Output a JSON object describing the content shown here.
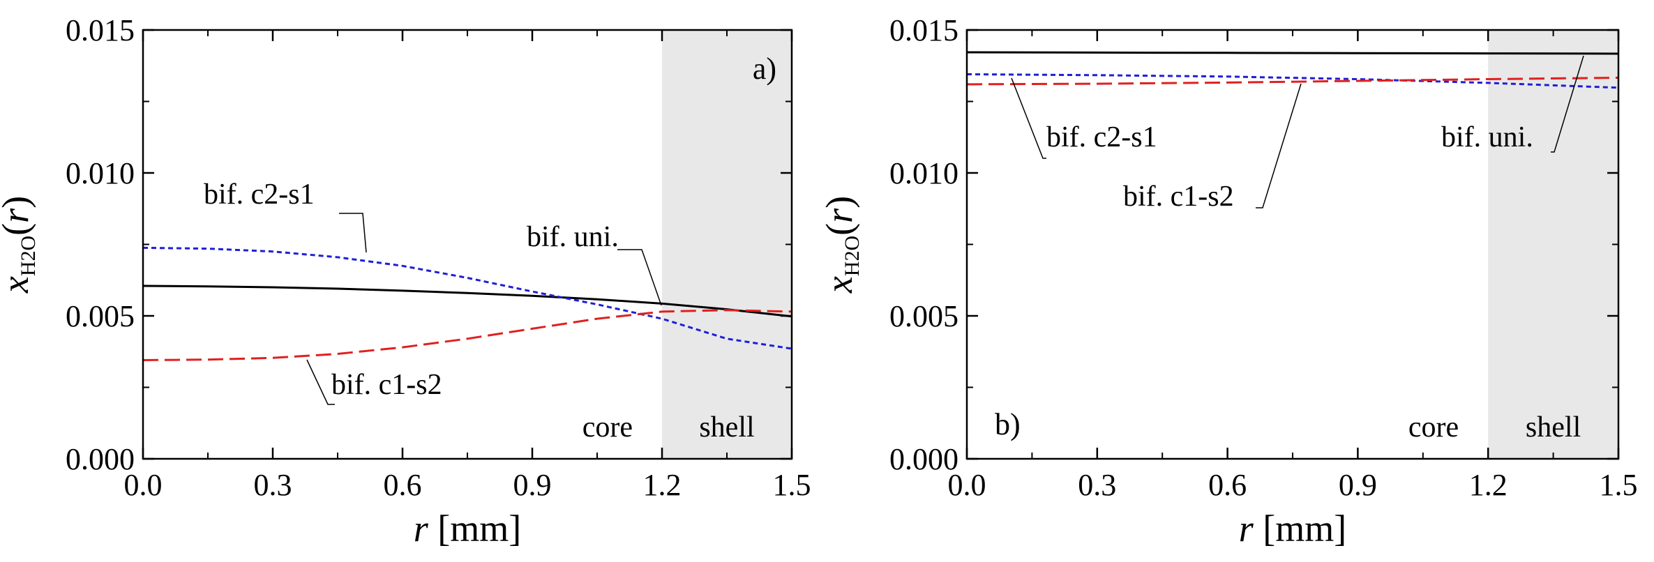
{
  "chart_data": [
    {
      "type": "line",
      "panel_label": "a)",
      "xlabel": {
        "var": "r",
        "unit": "[mm]"
      },
      "ylabel": {
        "var": "x",
        "sub": "H2O",
        "arg_open": "(",
        "arg": "r",
        "arg_close": ")"
      },
      "xlim": [
        0.0,
        1.5
      ],
      "ylim": [
        0.0,
        0.015
      ],
      "xticks": [
        "0.0",
        "0.3",
        "0.6",
        "0.9",
        "1.2",
        "1.5"
      ],
      "yticks": [
        "0.000",
        "0.005",
        "0.010",
        "0.015"
      ],
      "shell_start": 1.2,
      "region_labels": {
        "core": "core",
        "shell": "shell"
      },
      "series": [
        {
          "name": "bif. uni.",
          "color": "#000000",
          "style": "solid",
          "x": [
            0,
            0.15,
            0.3,
            0.45,
            0.6,
            0.75,
            0.9,
            1.05,
            1.2,
            1.35,
            1.5
          ],
          "y": [
            0.00605,
            0.00603,
            0.006,
            0.00595,
            0.00588,
            0.0058,
            0.0057,
            0.00558,
            0.00543,
            0.00523,
            0.00498
          ]
        },
        {
          "name": "bif. c2-s1",
          "color": "#1f1fd6",
          "style": "dotted",
          "x": [
            0,
            0.15,
            0.3,
            0.45,
            0.6,
            0.75,
            0.9,
            1.05,
            1.2,
            1.35,
            1.5
          ],
          "y": [
            0.00738,
            0.00735,
            0.00725,
            0.00705,
            0.00675,
            0.00633,
            0.00585,
            0.0054,
            0.0049,
            0.0042,
            0.00385
          ]
        },
        {
          "name": "bif. c1-s2",
          "color": "#e02020",
          "style": "dashed",
          "x": [
            0,
            0.15,
            0.3,
            0.45,
            0.6,
            0.75,
            0.9,
            1.05,
            1.2,
            1.35,
            1.5
          ],
          "y": [
            0.00345,
            0.00347,
            0.00353,
            0.00367,
            0.0039,
            0.0042,
            0.00455,
            0.0049,
            0.00515,
            0.0052,
            0.00515
          ]
        }
      ],
      "annotations": [
        {
          "text": "bif. c2-s1",
          "series": "bif. c2-s1"
        },
        {
          "text": "bif. uni.",
          "series": "bif. uni."
        },
        {
          "text": "bif. c1-s2",
          "series": "bif. c1-s2"
        }
      ]
    },
    {
      "type": "line",
      "panel_label": "b)",
      "xlabel": {
        "var": "r",
        "unit": "[mm]"
      },
      "ylabel": {
        "var": "x",
        "sub": "H2O",
        "arg_open": "(",
        "arg": "r",
        "arg_close": ")"
      },
      "xlim": [
        0.0,
        1.5
      ],
      "ylim": [
        0.0,
        0.015
      ],
      "xticks": [
        "0.0",
        "0.3",
        "0.6",
        "0.9",
        "1.2",
        "1.5"
      ],
      "yticks": [
        "0.000",
        "0.005",
        "0.010",
        "0.015"
      ],
      "shell_start": 1.2,
      "region_labels": {
        "core": "core",
        "shell": "shell"
      },
      "series": [
        {
          "name": "bif. uni.",
          "color": "#000000",
          "style": "solid",
          "x": [
            0,
            0.3,
            0.6,
            0.9,
            1.2,
            1.5
          ],
          "y": [
            0.01422,
            0.01421,
            0.0142,
            0.01419,
            0.01418,
            0.01417
          ]
        },
        {
          "name": "bif. c2-s1",
          "color": "#1f1fd6",
          "style": "dotted",
          "x": [
            0,
            0.3,
            0.6,
            0.9,
            1.2,
            1.5
          ],
          "y": [
            0.01345,
            0.01342,
            0.01337,
            0.01328,
            0.01315,
            0.01298
          ]
        },
        {
          "name": "bif. c1-s2",
          "color": "#e02020",
          "style": "dashed",
          "x": [
            0,
            0.3,
            0.6,
            0.9,
            1.2,
            1.5
          ],
          "y": [
            0.0131,
            0.01312,
            0.01316,
            0.01322,
            0.01328,
            0.01333
          ]
        }
      ],
      "annotations": [
        {
          "text": "bif. c2-s1",
          "series": "bif. c2-s1"
        },
        {
          "text": "bif. c1-s2",
          "series": "bif. c1-s2"
        },
        {
          "text": "bif. uni.",
          "series": "bif. uni."
        }
      ]
    }
  ]
}
